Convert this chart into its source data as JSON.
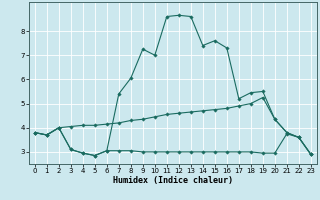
{
  "xlabel": "Humidex (Indice chaleur)",
  "bg_color": "#cce8ee",
  "line_color": "#1a6b60",
  "grid_color": "#ffffff",
  "series1_y": [
    3.8,
    3.7,
    4.0,
    3.1,
    2.95,
    2.85,
    3.05,
    3.05,
    3.05,
    3.0,
    3.0,
    3.0,
    3.0,
    3.0,
    3.0,
    3.0,
    3.0,
    3.0,
    3.0,
    2.95,
    2.95,
    3.75,
    3.6,
    2.9
  ],
  "series2_y": [
    3.8,
    3.7,
    4.0,
    4.05,
    4.1,
    4.1,
    4.15,
    4.2,
    4.3,
    4.35,
    4.45,
    4.55,
    4.6,
    4.65,
    4.7,
    4.75,
    4.8,
    4.9,
    5.0,
    5.25,
    4.35,
    3.8,
    3.6,
    2.9
  ],
  "series3_y": [
    3.8,
    3.7,
    4.0,
    3.1,
    2.95,
    2.85,
    3.05,
    5.4,
    6.05,
    7.25,
    7.0,
    8.6,
    8.65,
    8.6,
    7.4,
    7.6,
    7.3,
    5.2,
    5.45,
    5.5,
    4.35,
    3.8,
    3.6,
    2.9
  ],
  "ylim": [
    2.5,
    9.2
  ],
  "xlim": [
    -0.5,
    23.5
  ],
  "yticks": [
    3,
    4,
    5,
    6,
    7,
    8
  ],
  "xticks": [
    0,
    1,
    2,
    3,
    4,
    5,
    6,
    7,
    8,
    9,
    10,
    11,
    12,
    13,
    14,
    15,
    16,
    17,
    18,
    19,
    20,
    21,
    22,
    23
  ]
}
